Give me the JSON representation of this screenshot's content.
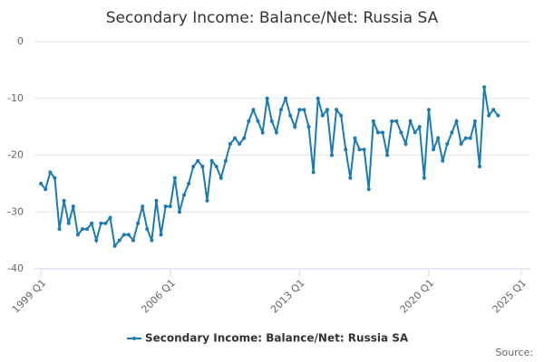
{
  "chart_data": {
    "type": "line",
    "title": "Secondary Income: Balance/Net: Russia SA",
    "x": [
      1999,
      1999.25,
      1999.5,
      1999.75,
      2000,
      2000.25,
      2000.5,
      2000.75,
      2001,
      2001.25,
      2001.5,
      2001.75,
      2002,
      2002.25,
      2002.5,
      2002.75,
      2003,
      2003.25,
      2003.5,
      2003.75,
      2004,
      2004.25,
      2004.5,
      2004.75,
      2005,
      2005.25,
      2005.5,
      2005.75,
      2006,
      2006.25,
      2006.5,
      2006.75,
      2007,
      2007.25,
      2007.5,
      2007.75,
      2008,
      2008.25,
      2008.5,
      2008.75,
      2009,
      2009.25,
      2009.5,
      2009.75,
      2010,
      2010.25,
      2010.5,
      2010.75,
      2011,
      2011.25,
      2011.5,
      2011.75,
      2012,
      2012.25,
      2012.5,
      2012.75,
      2013,
      2013.25,
      2013.5,
      2013.75,
      2014,
      2014.25,
      2014.5,
      2014.75,
      2015,
      2015.25,
      2015.5,
      2015.75,
      2016,
      2016.25,
      2016.5,
      2016.75,
      2017,
      2017.25,
      2017.5,
      2017.75,
      2018,
      2018.25,
      2018.5,
      2018.75,
      2019,
      2019.25,
      2019.5,
      2019.75,
      2020,
      2020.25,
      2020.5,
      2020.75,
      2021,
      2021.25,
      2021.5,
      2021.75,
      2022,
      2022.25,
      2022.5,
      2022.75,
      2023,
      2023.25,
      2023.5,
      2023.75
    ],
    "series": [
      {
        "name": "Secondary Income: Balance/Net: Russia SA",
        "color": "#1a7ab5",
        "values": [
          -25,
          -26,
          -23,
          -24,
          -33,
          -28,
          -32,
          -29,
          -34,
          -33,
          -33,
          -32,
          -35,
          -32,
          -32,
          -31,
          -36,
          -35,
          -34,
          -34,
          -35,
          -32,
          -29,
          -33,
          -35,
          -28,
          -34,
          -29,
          -29,
          -24,
          -30,
          -27,
          -25,
          -22,
          -21,
          -22,
          -28,
          -21,
          -22,
          -24,
          -21,
          -18,
          -17,
          -18,
          -17,
          -14,
          -12,
          -14,
          -16,
          -10,
          -14,
          -16,
          -12,
          -10,
          -13,
          -15,
          -12,
          -12,
          -15,
          -23,
          -10,
          -13,
          -12,
          -20,
          -12,
          -13,
          -19,
          -24,
          -17,
          -19,
          -19,
          -26,
          -14,
          -16,
          -16,
          -20,
          -14,
          -14,
          -16,
          -18,
          -14,
          -16,
          -15,
          -24,
          -12,
          -19,
          -17,
          -21,
          -18,
          -16,
          -14,
          -18,
          -17,
          -17,
          -14,
          -22,
          -8,
          -13,
          -12,
          -13
        ]
      }
    ],
    "xlim": [
      1998.65,
      2025.5
    ],
    "xticks": [
      {
        "value": 1999,
        "label": "1999 Q1"
      },
      {
        "value": 2006,
        "label": "2006 Q1"
      },
      {
        "value": 2013,
        "label": "2013 Q1"
      },
      {
        "value": 2020,
        "label": "2020 Q1"
      },
      {
        "value": 2025,
        "label": "2025 Q1"
      }
    ],
    "ylim": [
      -40,
      0
    ],
    "yticks": [
      0,
      -10,
      -20,
      -30,
      -40
    ],
    "grid": true,
    "source": "Source:"
  }
}
